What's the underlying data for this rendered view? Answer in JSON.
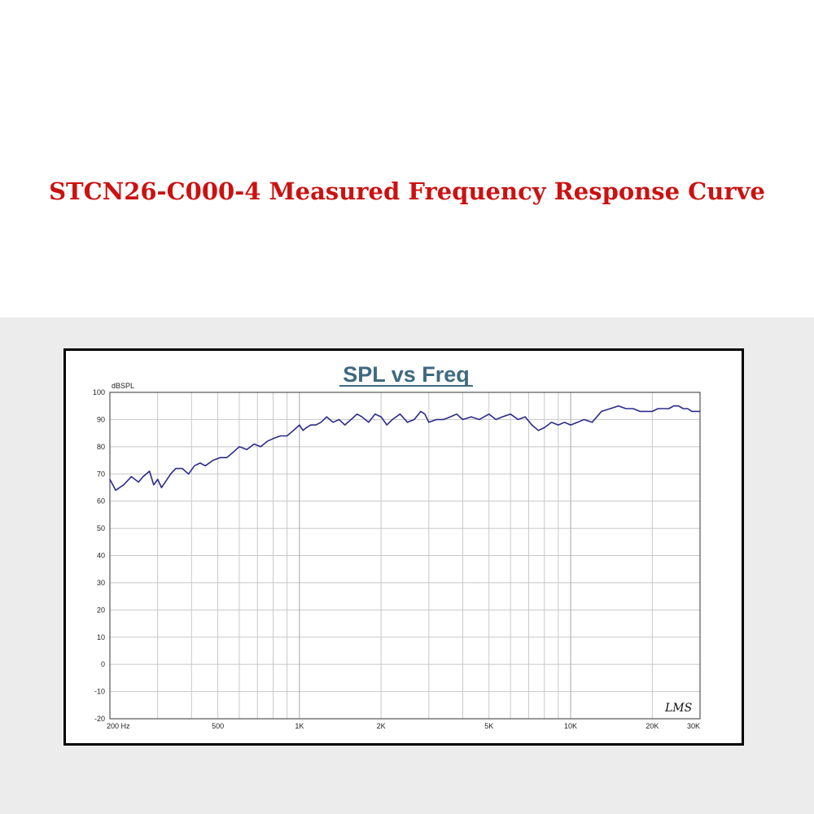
{
  "page": {
    "title": "STCN26-C000-4 Measured Frequency Response Curve"
  },
  "chart_data": {
    "type": "line",
    "title": "SPL vs Freq",
    "ylabel": "dBSPL",
    "xlabel": "",
    "x_scale": "log",
    "xlim": [
      200,
      30000
    ],
    "ylim": [
      -20,
      100
    ],
    "grid": true,
    "x_tick_labels": [
      {
        "value": 200,
        "label": "200  Hz"
      },
      {
        "value": 500,
        "label": "500"
      },
      {
        "value": 1000,
        "label": "1K"
      },
      {
        "value": 2000,
        "label": "2K"
      },
      {
        "value": 5000,
        "label": "5K"
      },
      {
        "value": 10000,
        "label": "10K"
      },
      {
        "value": 20000,
        "label": "20K"
      },
      {
        "value": 30000,
        "label": "30K"
      }
    ],
    "y_ticks": [
      100,
      90,
      80,
      70,
      60,
      50,
      40,
      30,
      20,
      10,
      0,
      -10,
      -20
    ],
    "logo": "LMS",
    "colors": {
      "line": "#2b2b8a",
      "title": "#3e6a80",
      "grid": "#c8c8c8"
    },
    "series": [
      {
        "x": [
          200,
          210,
          225,
          240,
          255,
          265,
          280,
          290,
          300,
          310,
          320,
          335,
          350,
          370,
          390,
          410,
          430,
          450,
          480,
          510,
          540,
          570,
          600,
          640,
          680,
          720,
          760,
          800,
          850,
          900,
          950,
          1000,
          1030,
          1060,
          1100,
          1150,
          1200,
          1260,
          1330,
          1400,
          1470,
          1550,
          1630,
          1700,
          1800,
          1900,
          2000,
          2100,
          2200,
          2350,
          2500,
          2650,
          2800,
          2900,
          3000,
          3200,
          3400,
          3600,
          3800,
          4000,
          4300,
          4600,
          5000,
          5300,
          5600,
          6000,
          6400,
          6800,
          7200,
          7600,
          8000,
          8500,
          9000,
          9500,
          10000,
          10600,
          11200,
          12000,
          13000,
          14000,
          15000,
          16000,
          17000,
          18000,
          19000,
          20000,
          21000,
          22000,
          23000,
          24000,
          25000,
          26000,
          27000,
          28000,
          29000,
          30000
        ],
        "y": [
          68,
          64,
          66,
          69,
          67,
          69,
          71,
          66,
          68,
          65,
          67,
          70,
          72,
          72,
          70,
          73,
          74,
          73,
          75,
          76,
          76,
          78,
          80,
          79,
          81,
          80,
          82,
          83,
          84,
          84,
          86,
          88,
          86,
          87,
          88,
          88,
          89,
          91,
          89,
          90,
          88,
          90,
          92,
          91,
          89,
          92,
          91,
          88,
          90,
          92,
          89,
          90,
          93,
          92,
          89,
          90,
          90,
          91,
          92,
          90,
          91,
          90,
          92,
          90,
          91,
          92,
          90,
          91,
          88,
          86,
          87,
          89,
          88,
          89,
          88,
          89,
          90,
          89,
          93,
          94,
          95,
          94,
          94,
          93,
          93,
          93,
          94,
          94,
          94,
          95,
          95,
          94,
          94,
          93,
          93,
          93
        ]
      }
    ]
  }
}
